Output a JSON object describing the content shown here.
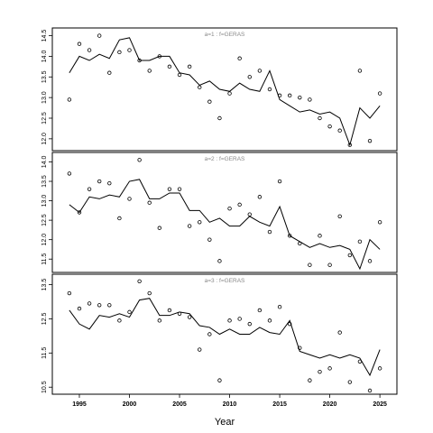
{
  "chart_data": {
    "type": "line",
    "xlabel": "Year",
    "xlim": [
      1992.3,
      2026.7
    ],
    "xticks": [
      1995,
      2000,
      2005,
      2010,
      2015,
      2020,
      2025
    ],
    "panels": [
      {
        "title": "a=1  :  f=GERAS",
        "ylim": [
          11.8,
          14.6
        ],
        "yticks": [
          "12.0",
          "12.5",
          "13.0",
          "13.5",
          "14.0",
          "14.5"
        ],
        "series": [
          {
            "kind": "line",
            "x": [
              1994,
              1995,
              1996,
              1997,
              1998,
              1999,
              2000,
              2001,
              2002,
              2003,
              2004,
              2005,
              2006,
              2007,
              2008,
              2009,
              2010,
              2011,
              2012,
              2013,
              2014,
              2015,
              2016,
              2017,
              2018,
              2019,
              2020,
              2021,
              2022,
              2023,
              2024,
              2025
            ],
            "y": [
              13.6,
              14.0,
              13.9,
              14.05,
              13.95,
              14.4,
              14.45,
              13.9,
              13.9,
              14.0,
              14.0,
              13.6,
              13.55,
              13.3,
              13.4,
              13.2,
              13.15,
              13.35,
              13.2,
              13.15,
              13.65,
              12.95,
              12.8,
              12.65,
              12.7,
              12.6,
              12.65,
              12.5,
              11.85,
              12.75,
              12.5,
              12.8
            ]
          },
          {
            "kind": "points",
            "x": [
              1994,
              1995,
              1996,
              1997,
              1998,
              1999,
              2000,
              2001,
              2002,
              2003,
              2004,
              2005,
              2006,
              2007,
              2008,
              2009,
              2010,
              2011,
              2012,
              2013,
              2014,
              2015,
              2016,
              2017,
              2018,
              2019,
              2020,
              2021,
              2022,
              2023,
              2024,
              2025
            ],
            "y": [
              12.95,
              14.3,
              14.15,
              14.5,
              13.6,
              14.1,
              14.15,
              13.9,
              13.65,
              14.0,
              13.75,
              13.55,
              13.75,
              13.25,
              12.9,
              12.5,
              13.1,
              13.95,
              13.5,
              13.65,
              13.2,
              13.05,
              13.05,
              13.0,
              12.95,
              12.5,
              12.3,
              12.2,
              11.85,
              13.65,
              11.95,
              13.1
            ]
          }
        ]
      },
      {
        "title": "a=2  :  f=GERAS",
        "ylim": [
          11.25,
          14.15
        ],
        "yticks": [
          "11.5",
          "12.0",
          "12.5",
          "13.0",
          "13.5",
          "14.0"
        ],
        "series": [
          {
            "kind": "line",
            "x": [
              1994,
              1995,
              1996,
              1997,
              1998,
              1999,
              2000,
              2001,
              2002,
              2003,
              2004,
              2005,
              2006,
              2007,
              2008,
              2009,
              2010,
              2011,
              2012,
              2013,
              2014,
              2015,
              2016,
              2017,
              2018,
              2019,
              2020,
              2021,
              2022,
              2023,
              2024,
              2025
            ],
            "y": [
              12.9,
              12.7,
              13.1,
              13.05,
              13.15,
              13.1,
              13.5,
              13.55,
              13.05,
              13.05,
              13.2,
              13.2,
              12.75,
              12.75,
              12.45,
              12.55,
              12.35,
              12.35,
              12.6,
              12.45,
              12.35,
              12.85,
              12.1,
              11.95,
              11.8,
              11.9,
              11.8,
              11.85,
              11.75,
              11.25,
              12.0,
              11.75
            ]
          },
          {
            "kind": "points",
            "x": [
              1994,
              1995,
              1996,
              1997,
              1998,
              1999,
              2000,
              2001,
              2002,
              2003,
              2004,
              2005,
              2006,
              2007,
              2008,
              2009,
              2010,
              2011,
              2012,
              2013,
              2014,
              2015,
              2016,
              2017,
              2018,
              2019,
              2020,
              2021,
              2022,
              2023,
              2024,
              2025
            ],
            "y": [
              13.7,
              12.7,
              13.3,
              13.5,
              13.45,
              12.55,
              13.05,
              14.05,
              12.95,
              12.3,
              13.3,
              13.3,
              12.35,
              12.45,
              12.0,
              11.45,
              12.8,
              12.9,
              12.65,
              13.1,
              12.2,
              13.5,
              12.1,
              11.9,
              11.35,
              12.1,
              11.35,
              12.6,
              11.6,
              11.95,
              11.45,
              12.45
            ]
          }
        ]
      },
      {
        "title": "a=3  :  f=GERAS",
        "ylim": [
          10.4,
          13.7
        ],
        "yticks": [
          "10.5",
          "11.5",
          "12.5",
          "13.5"
        ],
        "series": [
          {
            "kind": "line",
            "x": [
              1994,
              1995,
              1996,
              1997,
              1998,
              1999,
              2000,
              2001,
              2002,
              2003,
              2004,
              2005,
              2006,
              2007,
              2008,
              2009,
              2010,
              2011,
              2012,
              2013,
              2014,
              2015,
              2016,
              2017,
              2018,
              2019,
              2020,
              2021,
              2022,
              2023,
              2024,
              2025
            ],
            "y": [
              12.75,
              12.35,
              12.2,
              12.6,
              12.55,
              12.65,
              12.55,
              13.05,
              13.1,
              12.6,
              12.6,
              12.7,
              12.65,
              12.3,
              12.25,
              12.05,
              12.2,
              12.05,
              12.05,
              12.25,
              12.1,
              12.05,
              12.45,
              11.55,
              11.45,
              11.35,
              11.45,
              11.35,
              11.45,
              11.35,
              10.85,
              11.6
            ]
          },
          {
            "kind": "points",
            "x": [
              1994,
              1995,
              1996,
              1997,
              1998,
              1999,
              2000,
              2001,
              2002,
              2003,
              2004,
              2005,
              2006,
              2007,
              2008,
              2009,
              2010,
              2011,
              2012,
              2013,
              2014,
              2015,
              2016,
              2017,
              2018,
              2019,
              2020,
              2021,
              2022,
              2023,
              2024,
              2025
            ],
            "y": [
              13.25,
              12.8,
              12.95,
              12.9,
              12.9,
              12.45,
              12.7,
              13.6,
              13.25,
              12.45,
              12.75,
              12.65,
              12.55,
              11.6,
              12.05,
              10.7,
              12.45,
              12.5,
              12.35,
              12.75,
              12.45,
              12.85,
              12.35,
              11.65,
              10.7,
              10.95,
              11.05,
              12.1,
              10.65,
              11.25,
              10.4,
              11.05
            ]
          }
        ]
      }
    ]
  }
}
